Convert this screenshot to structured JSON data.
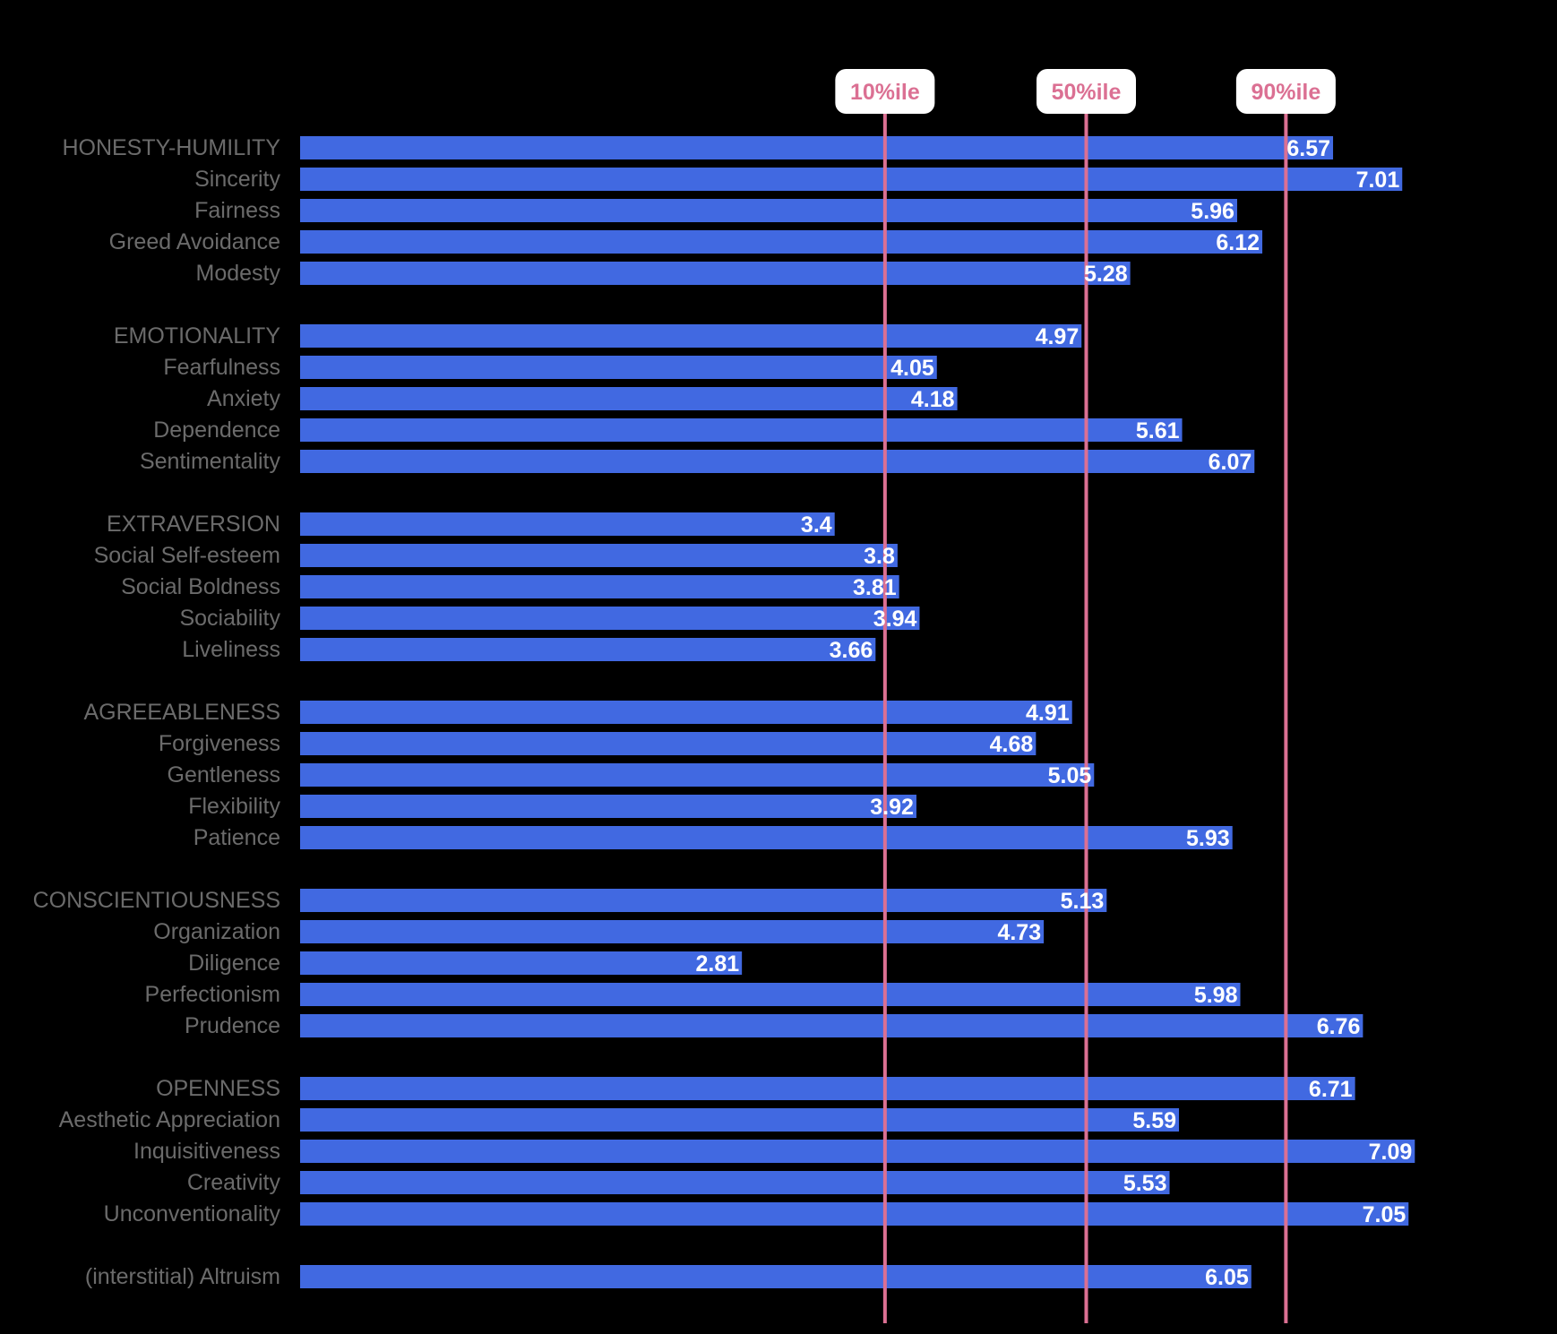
{
  "chart_data": {
    "type": "bar",
    "orientation": "horizontal",
    "title": "",
    "xlabel": "",
    "ylabel": "",
    "xlim": [
      0,
      7.5
    ],
    "grid": false,
    "legend": "none",
    "colors": {
      "background": "#000000",
      "bar": "#4169E1",
      "bar_label": "#FFFFFF",
      "category_label": "#6B6B6B",
      "percentile_line": "#DB7093",
      "percentile_pill": "#FFFFFF"
    },
    "groups": [
      {
        "name": "HONESTY-HUMILITY",
        "items": [
          {
            "label": "HONESTY-HUMILITY",
            "value": 6.57,
            "display": "6.57"
          },
          {
            "label": "Sincerity",
            "value": 7.01,
            "display": "7.01"
          },
          {
            "label": "Fairness",
            "value": 5.96,
            "display": "5.96"
          },
          {
            "label": "Greed Avoidance",
            "value": 6.12,
            "display": "6.12"
          },
          {
            "label": "Modesty",
            "value": 5.28,
            "display": "5.28"
          }
        ]
      },
      {
        "name": "EMOTIONALITY",
        "items": [
          {
            "label": "EMOTIONALITY",
            "value": 4.97,
            "display": "4.97"
          },
          {
            "label": "Fearfulness",
            "value": 4.05,
            "display": "4.05"
          },
          {
            "label": "Anxiety",
            "value": 4.18,
            "display": "4.18"
          },
          {
            "label": "Dependence",
            "value": 5.61,
            "display": "5.61"
          },
          {
            "label": "Sentimentality",
            "value": 6.07,
            "display": "6.07"
          }
        ]
      },
      {
        "name": "EXTRAVERSION",
        "items": [
          {
            "label": "EXTRAVERSION",
            "value": 3.4,
            "display": "3.4"
          },
          {
            "label": "Social Self-esteem",
            "value": 3.8,
            "display": "3.8"
          },
          {
            "label": "Social Boldness",
            "value": 3.81,
            "display": "3.81"
          },
          {
            "label": "Sociability",
            "value": 3.94,
            "display": "3.94"
          },
          {
            "label": "Liveliness",
            "value": 3.66,
            "display": "3.66"
          }
        ]
      },
      {
        "name": "AGREEABLENESS",
        "items": [
          {
            "label": "AGREEABLENESS",
            "value": 4.91,
            "display": "4.91"
          },
          {
            "label": "Forgiveness",
            "value": 4.68,
            "display": "4.68"
          },
          {
            "label": "Gentleness",
            "value": 5.05,
            "display": "5.05"
          },
          {
            "label": "Flexibility",
            "value": 3.92,
            "display": "3.92"
          },
          {
            "label": "Patience",
            "value": 5.93,
            "display": "5.93"
          }
        ]
      },
      {
        "name": "CONSCIENTIOUSNESS",
        "items": [
          {
            "label": "CONSCIENTIOUSNESS",
            "value": 5.13,
            "display": "5.13"
          },
          {
            "label": "Organization",
            "value": 4.73,
            "display": "4.73"
          },
          {
            "label": "Diligence",
            "value": 2.81,
            "display": "2.81"
          },
          {
            "label": "Perfectionism",
            "value": 5.98,
            "display": "5.98"
          },
          {
            "label": "Prudence",
            "value": 6.76,
            "display": "6.76"
          }
        ]
      },
      {
        "name": "OPENNESS",
        "items": [
          {
            "label": "OPENNESS",
            "value": 6.71,
            "display": "6.71"
          },
          {
            "label": "Aesthetic Appreciation",
            "value": 5.59,
            "display": "5.59"
          },
          {
            "label": "Inquisitiveness",
            "value": 7.09,
            "display": "7.09"
          },
          {
            "label": "Creativity",
            "value": 5.53,
            "display": "5.53"
          },
          {
            "label": "Unconventionality",
            "value": 7.05,
            "display": "7.05"
          }
        ]
      },
      {
        "name": "ALTRUISM",
        "items": [
          {
            "label": "(interstitial) Altruism",
            "value": 6.05,
            "display": "6.05"
          }
        ]
      }
    ],
    "reference_lines": [
      {
        "label": "10%ile",
        "value": 3.72
      },
      {
        "label": "50%ile",
        "value": 5.0
      },
      {
        "label": "90%ile",
        "value": 6.27
      }
    ]
  }
}
